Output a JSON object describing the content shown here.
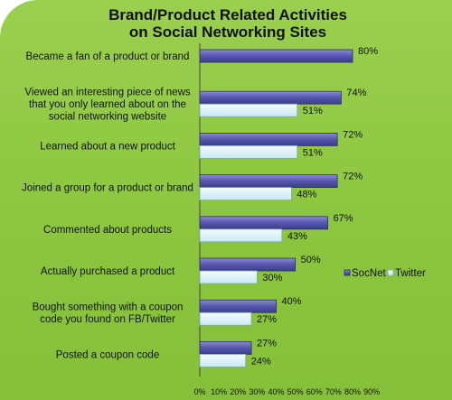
{
  "chart_data": {
    "type": "bar",
    "orientation": "horizontal",
    "title": [
      "Brand/Product Related Activities",
      "on Social Networking Sites"
    ],
    "categories": [
      [
        "Became a fan of a product or brand"
      ],
      [
        "Viewed an interesting piece of news",
        "that you only learned about on the",
        "social networking website"
      ],
      [
        "Learned about a new product"
      ],
      [
        "Joined a group for a product or brand"
      ],
      [
        "Commented about products"
      ],
      [
        "Actually purchased a product"
      ],
      [
        "Bought something with a coupon",
        "code you found on FB/Twitter"
      ],
      [
        "Posted a coupon code"
      ]
    ],
    "series": [
      {
        "name": "SocNet",
        "values": [
          80,
          74,
          72,
          72,
          67,
          50,
          40,
          27
        ],
        "labels": [
          "80%",
          "74%",
          "72%",
          "72%",
          "67%",
          "50%",
          "40%",
          "27%"
        ],
        "color": "#5c5cb2"
      },
      {
        "name": "Twitter",
        "values": [
          null,
          51,
          51,
          48,
          43,
          30,
          27,
          24
        ],
        "labels": [
          null,
          "51%",
          "51%",
          "48%",
          "43%",
          "30%",
          "27%",
          "24%"
        ],
        "color": "#dbf0f7"
      }
    ],
    "xlim": [
      0,
      90
    ],
    "x_ticks": [
      "0%",
      "10%",
      "20%",
      "30%",
      "40%",
      "50%",
      "60%",
      "70%",
      "80%",
      "90%"
    ],
    "legend_position": "right",
    "grid": false
  }
}
